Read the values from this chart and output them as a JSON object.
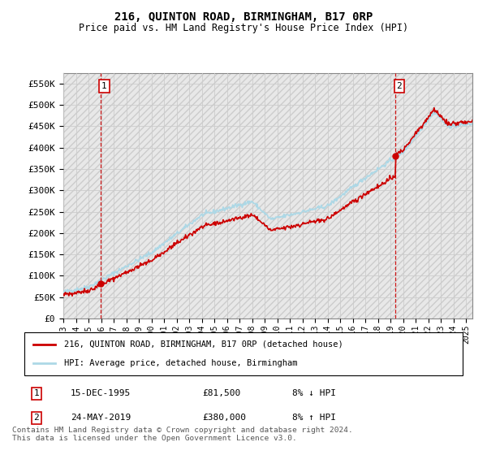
{
  "title": "216, QUINTON ROAD, BIRMINGHAM, B17 0RP",
  "subtitle": "Price paid vs. HM Land Registry's House Price Index (HPI)",
  "ylabel_ticks": [
    "£0",
    "£50K",
    "£100K",
    "£150K",
    "£200K",
    "£250K",
    "£300K",
    "£350K",
    "£400K",
    "£450K",
    "£500K",
    "£550K"
  ],
  "ytick_values": [
    0,
    50000,
    100000,
    150000,
    200000,
    250000,
    300000,
    350000,
    400000,
    450000,
    500000,
    550000
  ],
  "ylim": [
    0,
    575000
  ],
  "xlim_start": 1993.0,
  "xlim_end": 2025.5,
  "sale1": {
    "year": 1995.96,
    "price": 81500,
    "label": "1"
  },
  "sale2": {
    "year": 2019.39,
    "price": 380000,
    "label": "2"
  },
  "legend_line1": "216, QUINTON ROAD, BIRMINGHAM, B17 0RP (detached house)",
  "legend_line2": "HPI: Average price, detached house, Birmingham",
  "table_row1": [
    "1",
    "15-DEC-1995",
    "£81,500",
    "8% ↓ HPI"
  ],
  "table_row2": [
    "2",
    "24-MAY-2019",
    "£380,000",
    "8% ↑ HPI"
  ],
  "footer": "Contains HM Land Registry data © Crown copyright and database right 2024.\nThis data is licensed under the Open Government Licence v3.0.",
  "hpi_color": "#add8e6",
  "price_color": "#cc0000",
  "sale_dot_color": "#cc0000",
  "dashed_line_color": "#cc0000",
  "grid_color": "#cccccc",
  "hatch_color": "#e0e0e0",
  "bg_color": "#e8e8e8"
}
